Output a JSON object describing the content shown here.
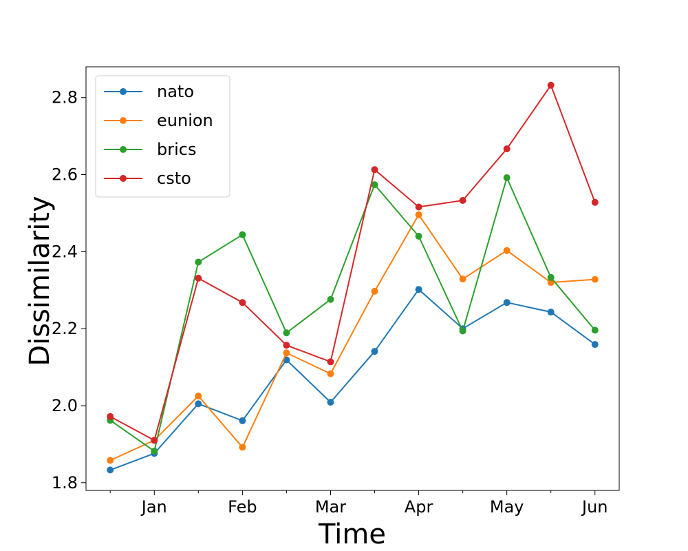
{
  "chart_data": {
    "type": "line",
    "xlabel": "Time",
    "ylabel": "Dissimilarity",
    "x": [
      0,
      1,
      2,
      3,
      4,
      5,
      6,
      7,
      8,
      9,
      10,
      11
    ],
    "xlim": [
      -0.55,
      11.55
    ],
    "ylim": [
      1.78,
      2.88
    ],
    "xticks": [
      {
        "x": 1,
        "label": "Jan"
      },
      {
        "x": 3,
        "label": "Feb"
      },
      {
        "x": 5,
        "label": "Mar"
      },
      {
        "x": 7,
        "label": "Apr"
      },
      {
        "x": 9,
        "label": "May"
      },
      {
        "x": 11,
        "label": "Jun"
      }
    ],
    "minor_xticks": [
      0,
      2,
      4,
      6,
      8,
      10
    ],
    "yticks": [
      1.8,
      2.0,
      2.2,
      2.4,
      2.6,
      2.8
    ],
    "ytick_labels": [
      "1.8",
      "2.0",
      "2.2",
      "2.4",
      "2.6",
      "2.8"
    ],
    "legend_position": "upper-left",
    "grid": false,
    "series": [
      {
        "name": "nato",
        "color": "#1f77b4",
        "values": [
          1.833,
          1.876,
          2.005,
          1.961,
          2.119,
          2.009,
          2.141,
          2.302,
          2.2,
          2.268,
          2.243,
          2.159
        ]
      },
      {
        "name": "eunion",
        "color": "#ff7f0e",
        "values": [
          1.858,
          1.91,
          2.025,
          1.892,
          2.137,
          2.083,
          2.297,
          2.496,
          2.329,
          2.403,
          2.32,
          2.328
        ]
      },
      {
        "name": "brics",
        "color": "#2ca02c",
        "values": [
          1.962,
          1.882,
          2.373,
          2.444,
          2.189,
          2.276,
          2.574,
          2.44,
          2.194,
          2.592,
          2.333,
          2.196
        ]
      },
      {
        "name": "csto",
        "color": "#d62728",
        "values": [
          1.972,
          1.91,
          2.331,
          2.268,
          2.157,
          2.114,
          2.613,
          2.516,
          2.533,
          2.667,
          2.832,
          2.528
        ]
      }
    ]
  }
}
